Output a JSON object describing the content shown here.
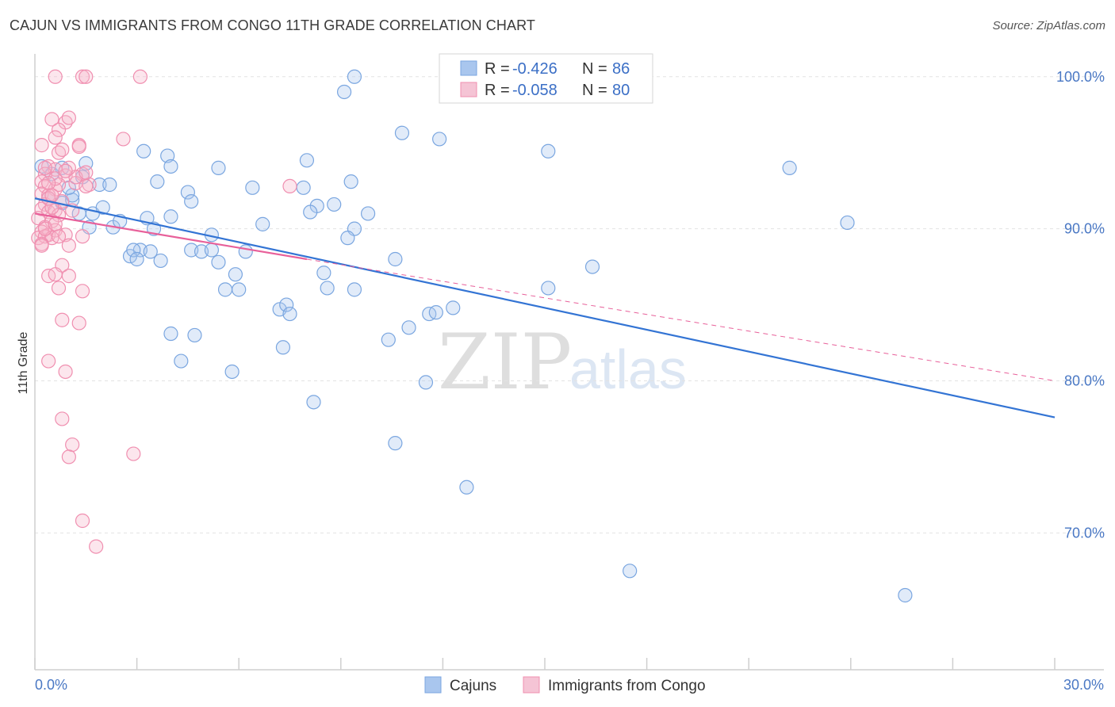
{
  "header": {
    "title": "CAJUN VS IMMIGRANTS FROM CONGO 11TH GRADE CORRELATION CHART",
    "source": "Source: ZipAtlas.com"
  },
  "watermark": {
    "zip": "ZIP",
    "atlas": "atlas"
  },
  "legend": {
    "rows": [
      {
        "r_label": "R =",
        "r_value": "-0.426",
        "n_label": "N =",
        "n_value": "86",
        "color": "#a9c6ee"
      },
      {
        "r_label": "R =",
        "r_value": "-0.058",
        "n_label": "N =",
        "n_value": "80",
        "color": "#f5b8cc"
      }
    ]
  },
  "bottom_legend": [
    {
      "label": "Cajuns",
      "color": "#a9c6ee"
    },
    {
      "label": "Immigrants from Congo",
      "color": "#f5b8cc"
    }
  ],
  "chart_data": {
    "type": "scatter",
    "title": "CAJUN VS IMMIGRANTS FROM CONGO 11TH GRADE CORRELATION CHART",
    "xlabel": "",
    "ylabel": "11th Grade",
    "xlim": [
      0,
      30
    ],
    "ylim": [
      61,
      101.5
    ],
    "x_tick_labels": [
      "0.0%",
      "30.0%"
    ],
    "y_ticks": [
      70,
      80,
      90,
      100
    ],
    "y_tick_labels": [
      "70.0%",
      "80.0%",
      "90.0%",
      "100.0%"
    ],
    "grid": true,
    "series": [
      {
        "name": "Cajuns",
        "color": "#7aa6e0",
        "line_color": "#3374d4",
        "trend": {
          "x0": 0,
          "y0": 92.0,
          "x1": 30,
          "y1": 77.6
        },
        "points": [
          [
            0.2,
            94.1
          ],
          [
            0.5,
            93.6
          ],
          [
            0.8,
            94.0
          ],
          [
            1.5,
            94.3
          ],
          [
            1.4,
            93.4
          ],
          [
            0.4,
            92.0
          ],
          [
            0.8,
            91.7
          ],
          [
            1.1,
            91.9
          ],
          [
            1.1,
            92.2
          ],
          [
            1.9,
            92.9
          ],
          [
            2.2,
            92.9
          ],
          [
            1.3,
            91.0
          ],
          [
            1.7,
            91.0
          ],
          [
            1.6,
            90.1
          ],
          [
            2.3,
            90.1
          ],
          [
            2.5,
            90.5
          ],
          [
            3.3,
            90.7
          ],
          [
            3.5,
            90.0
          ],
          [
            3.1,
            88.6
          ],
          [
            2.8,
            88.2
          ],
          [
            2.9,
            88.6
          ],
          [
            3.0,
            88.0
          ],
          [
            3.4,
            88.5
          ],
          [
            3.7,
            87.9
          ],
          [
            4.0,
            90.8
          ],
          [
            4.5,
            92.4
          ],
          [
            4.6,
            91.8
          ],
          [
            3.2,
            95.1
          ],
          [
            3.6,
            93.1
          ],
          [
            3.9,
            94.8
          ],
          [
            4.0,
            94.1
          ],
          [
            5.4,
            94.0
          ],
          [
            5.2,
            89.6
          ],
          [
            4.6,
            88.6
          ],
          [
            4.9,
            88.5
          ],
          [
            5.2,
            88.6
          ],
          [
            5.4,
            87.8
          ],
          [
            6.2,
            88.5
          ],
          [
            5.9,
            87.0
          ],
          [
            6.4,
            92.7
          ],
          [
            6.7,
            90.3
          ],
          [
            5.6,
            86.0
          ],
          [
            6.0,
            86.0
          ],
          [
            7.2,
            84.7
          ],
          [
            7.4,
            85.0
          ],
          [
            7.5,
            84.4
          ],
          [
            7.3,
            82.2
          ],
          [
            4.0,
            83.1
          ],
          [
            4.7,
            83.0
          ],
          [
            4.3,
            81.3
          ],
          [
            5.8,
            80.6
          ],
          [
            8.0,
            94.5
          ],
          [
            7.9,
            92.7
          ],
          [
            8.3,
            91.5
          ],
          [
            8.8,
            91.6
          ],
          [
            8.1,
            91.1
          ],
          [
            9.3,
            93.1
          ],
          [
            9.8,
            91.0
          ],
          [
            9.4,
            90.0
          ],
          [
            9.2,
            89.4
          ],
          [
            10.6,
            88.0
          ],
          [
            8.5,
            87.1
          ],
          [
            8.6,
            86.1
          ],
          [
            9.4,
            86.0
          ],
          [
            8.2,
            78.6
          ],
          [
            10.4,
            82.7
          ],
          [
            11.0,
            83.5
          ],
          [
            11.6,
            84.4
          ],
          [
            11.8,
            84.5
          ],
          [
            12.3,
            84.8
          ],
          [
            11.5,
            79.9
          ],
          [
            10.6,
            75.9
          ],
          [
            12.7,
            73.0
          ],
          [
            10.8,
            96.3
          ],
          [
            11.9,
            95.9
          ],
          [
            9.1,
            99.0
          ],
          [
            9.4,
            100.0
          ],
          [
            15.1,
            95.1
          ],
          [
            15.1,
            86.1
          ],
          [
            16.4,
            87.5
          ],
          [
            22.2,
            94.0
          ],
          [
            23.9,
            90.4
          ],
          [
            17.5,
            67.5
          ],
          [
            25.6,
            65.9
          ],
          [
            1.0,
            92.7
          ],
          [
            2.0,
            91.4
          ]
        ]
      },
      {
        "name": "Immigrants from Congo",
        "color": "#f08fb0",
        "line_color": "#e8609a",
        "trend": {
          "x0": 0,
          "y0": 91.0,
          "x1": 8,
          "y1": 88.0
        },
        "trend_dashed": {
          "x0": 8,
          "y0": 88.0,
          "x1": 30,
          "y1": 80.0
        },
        "points": [
          [
            0.6,
            100.0
          ],
          [
            1.4,
            100.0
          ],
          [
            1.5,
            100.0
          ],
          [
            3.1,
            100.0
          ],
          [
            0.5,
            97.2
          ],
          [
            0.9,
            97.0
          ],
          [
            1.0,
            97.3
          ],
          [
            0.7,
            96.5
          ],
          [
            0.6,
            96.0
          ],
          [
            0.2,
            95.5
          ],
          [
            0.7,
            95.0
          ],
          [
            1.3,
            95.5
          ],
          [
            1.3,
            95.4
          ],
          [
            2.6,
            95.9
          ],
          [
            0.4,
            94.1
          ],
          [
            0.6,
            93.9
          ],
          [
            0.3,
            93.6
          ],
          [
            0.9,
            93.5
          ],
          [
            1.4,
            93.6
          ],
          [
            0.2,
            93.1
          ],
          [
            0.3,
            92.8
          ],
          [
            0.6,
            92.6
          ],
          [
            0.7,
            92.9
          ],
          [
            1.2,
            93.0
          ],
          [
            1.6,
            92.9
          ],
          [
            0.2,
            92.3
          ],
          [
            0.4,
            92.2
          ],
          [
            0.3,
            91.6
          ],
          [
            0.2,
            91.3
          ],
          [
            0.4,
            91.1
          ],
          [
            0.6,
            91.2
          ],
          [
            0.7,
            90.9
          ],
          [
            0.1,
            90.7
          ],
          [
            0.5,
            90.5
          ],
          [
            0.3,
            90.1
          ],
          [
            0.2,
            89.8
          ],
          [
            0.4,
            89.6
          ],
          [
            0.6,
            89.9
          ],
          [
            0.9,
            89.6
          ],
          [
            0.1,
            89.4
          ],
          [
            0.3,
            89.5
          ],
          [
            0.5,
            89.4
          ],
          [
            1.4,
            89.5
          ],
          [
            0.2,
            89.0
          ],
          [
            1.0,
            88.9
          ],
          [
            0.8,
            87.6
          ],
          [
            0.4,
            86.9
          ],
          [
            0.6,
            87.0
          ],
          [
            1.0,
            86.9
          ],
          [
            0.7,
            86.1
          ],
          [
            1.4,
            85.9
          ],
          [
            0.8,
            84.0
          ],
          [
            1.3,
            83.8
          ],
          [
            0.4,
            81.3
          ],
          [
            0.9,
            80.6
          ],
          [
            0.8,
            77.5
          ],
          [
            1.1,
            75.8
          ],
          [
            1.0,
            75.0
          ],
          [
            2.9,
            75.2
          ],
          [
            1.4,
            70.8
          ],
          [
            1.8,
            69.1
          ],
          [
            7.5,
            92.8
          ],
          [
            1.5,
            92.8
          ],
          [
            1.2,
            93.4
          ],
          [
            1.5,
            93.7
          ],
          [
            0.4,
            92.0
          ],
          [
            0.3,
            90.0
          ],
          [
            0.8,
            91.8
          ],
          [
            0.6,
            93.3
          ],
          [
            0.5,
            91.4
          ],
          [
            1.0,
            94.0
          ],
          [
            0.2,
            88.9
          ],
          [
            0.7,
            89.5
          ],
          [
            0.9,
            93.8
          ],
          [
            0.4,
            93.0
          ],
          [
            0.5,
            92.2
          ],
          [
            0.3,
            94.0
          ],
          [
            0.8,
            95.2
          ],
          [
            1.1,
            91.2
          ],
          [
            0.6,
            90.3
          ]
        ]
      }
    ]
  }
}
